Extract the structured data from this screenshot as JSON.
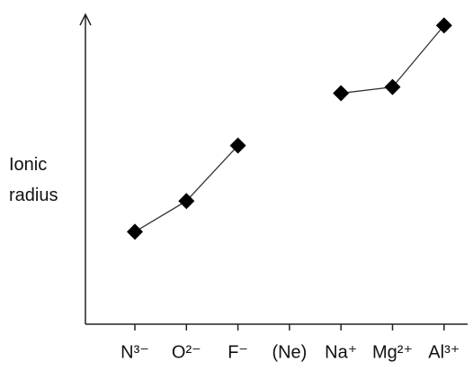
{
  "chart_data": {
    "type": "line",
    "y_label": "Ionic radius",
    "categories": [
      "N³⁻",
      "O²⁻",
      "F⁻",
      "(Ne)",
      "Na⁺",
      "Mg²⁺",
      "Al³⁺"
    ],
    "values": [
      30,
      40,
      58,
      null,
      75,
      77,
      97
    ],
    "color": "#000000",
    "line_color": "#333333",
    "ylim": [
      0,
      100
    ]
  }
}
